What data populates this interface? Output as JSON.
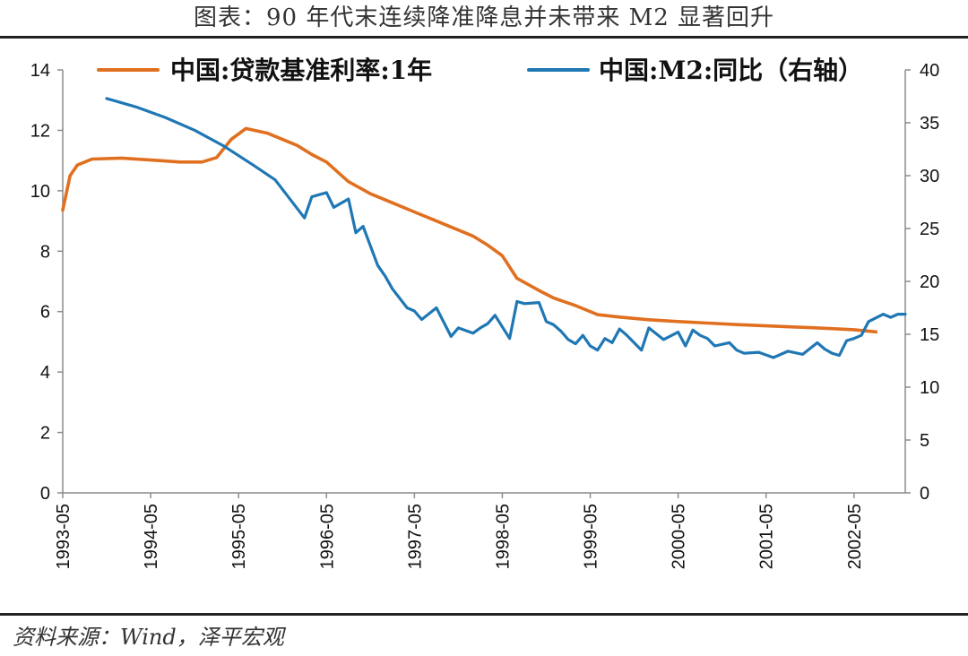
{
  "header": {
    "title": "图表：90 年代末连续降准降息并未带来 M2 显著回升"
  },
  "footer": {
    "source": "资料来源：Wind，泽平宏观"
  },
  "chart_data": {
    "type": "line",
    "title": "图表：90 年代末连续降准降息并未带来 M2 显著回升",
    "x_tick_labels": [
      "1993-05",
      "1994-05",
      "1995-05",
      "1996-05",
      "1997-05",
      "1998-05",
      "1999-05",
      "2000-05",
      "2001-05",
      "2002-05"
    ],
    "x_range": [
      "1993-05",
      "2002-12"
    ],
    "y_left": {
      "range": [
        0,
        14
      ],
      "ticks": [
        "0",
        "2",
        "4",
        "6",
        "8",
        "10",
        "12",
        "14"
      ]
    },
    "y_right": {
      "range": [
        0,
        40
      ],
      "ticks": [
        "0",
        "5",
        "10",
        "15",
        "20",
        "25",
        "30",
        "35",
        "40"
      ]
    },
    "grid": false,
    "legend": {
      "placement": "top"
    },
    "colors": {
      "loan_rate": "#E07020",
      "m2": "#1F77B4"
    },
    "series": [
      {
        "name": "中国:贷款基准利率:1年",
        "axis": "left",
        "x": [
          "1993-05",
          "1993-06",
          "1993-07",
          "1993-09",
          "1994-01",
          "1994-06",
          "1994-09",
          "1994-12",
          "1995-02",
          "1995-04",
          "1995-06",
          "1995-09",
          "1996-01",
          "1996-03",
          "1996-05",
          "1996-08",
          "1996-11",
          "1997-02",
          "1997-05",
          "1997-08",
          "1997-10",
          "1998-01",
          "1998-03",
          "1998-05",
          "1998-07",
          "1998-10",
          "1998-12",
          "1999-03",
          "1999-06",
          "1999-09",
          "2000-01",
          "2000-05",
          "2000-09",
          "2001-01",
          "2001-05",
          "2001-09",
          "2002-01",
          "2002-05",
          "2002-08"
        ],
        "values": [
          9.36,
          10.5,
          10.85,
          11.05,
          11.08,
          11.0,
          10.95,
          10.95,
          11.1,
          11.7,
          12.06,
          11.9,
          11.5,
          11.2,
          10.95,
          10.3,
          9.9,
          9.6,
          9.3,
          9.0,
          8.8,
          8.5,
          8.2,
          7.85,
          7.1,
          6.7,
          6.45,
          6.2,
          5.9,
          5.82,
          5.73,
          5.67,
          5.62,
          5.57,
          5.53,
          5.49,
          5.45,
          5.4,
          5.33
        ]
      },
      {
        "name": "中国:M2:同比（右轴）",
        "axis": "right",
        "x": [
          "1993-11",
          "1994-03",
          "1994-07",
          "1994-11",
          "1995-03",
          "1995-07",
          "1995-10",
          "1996-02",
          "1996-03",
          "1996-05",
          "1996-06",
          "1996-08",
          "1996-09",
          "1996-10",
          "1996-12",
          "1997-01",
          "1997-02",
          "1997-04",
          "1997-05",
          "1997-06",
          "1997-08",
          "1997-10",
          "1997-11",
          "1998-01",
          "1998-02",
          "1998-03",
          "1998-04",
          "1998-06",
          "1998-07",
          "1998-08",
          "1998-10",
          "1998-11",
          "1998-12",
          "1999-01",
          "1999-02",
          "1999-03",
          "1999-04",
          "1999-05",
          "1999-06",
          "1999-07",
          "1999-08",
          "1999-09",
          "1999-10",
          "1999-12",
          "2000-01",
          "2000-03",
          "2000-05",
          "2000-06",
          "2000-07",
          "2000-08",
          "2000-09",
          "2000-10",
          "2000-12",
          "2001-01",
          "2001-02",
          "2001-04",
          "2001-06",
          "2001-08",
          "2001-10",
          "2001-12",
          "2002-01",
          "2002-02",
          "2002-03",
          "2002-04",
          "2002-05",
          "2002-06",
          "2002-07",
          "2002-09",
          "2002-10",
          "2002-11",
          "2002-12"
        ],
        "values": [
          37.3,
          36.5,
          35.5,
          34.3,
          32.8,
          31.0,
          29.6,
          26.0,
          28.0,
          28.4,
          27.0,
          27.8,
          24.6,
          25.2,
          21.5,
          20.5,
          19.3,
          17.5,
          17.2,
          16.4,
          17.5,
          14.8,
          15.6,
          15.1,
          15.6,
          16.0,
          16.8,
          14.6,
          18.1,
          17.9,
          18.0,
          16.2,
          15.9,
          15.3,
          14.5,
          14.1,
          14.9,
          13.9,
          13.5,
          14.6,
          14.2,
          15.5,
          14.9,
          13.5,
          15.6,
          14.5,
          15.2,
          13.9,
          15.4,
          14.9,
          14.6,
          13.9,
          14.2,
          13.5,
          13.2,
          13.3,
          12.8,
          13.4,
          13.1,
          14.2,
          13.6,
          13.2,
          13.0,
          14.4,
          14.6,
          14.9,
          16.2,
          16.9,
          16.6,
          16.9,
          16.9
        ]
      }
    ]
  }
}
